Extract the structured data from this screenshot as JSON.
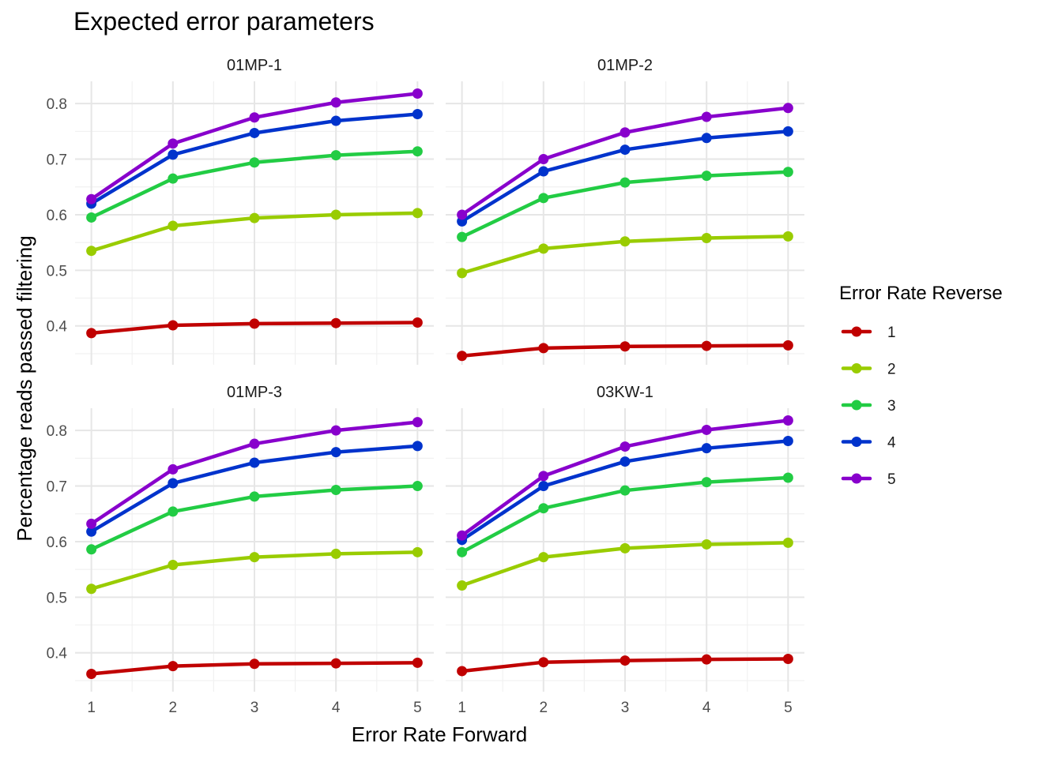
{
  "chart_data": {
    "type": "line",
    "title": "Expected error parameters",
    "xlabel": "Error Rate Forward",
    "ylabel": "Percentage reads passed filtering",
    "x": [
      1,
      2,
      3,
      4,
      5
    ],
    "ylim": [
      0.33,
      0.84
    ],
    "yticks": [
      0.4,
      0.5,
      0.6,
      0.7,
      0.8
    ],
    "ytick_labels": [
      "0.4",
      "0.5",
      "0.6",
      "0.7",
      "0.8"
    ],
    "xtick_labels": [
      "1",
      "2",
      "3",
      "4",
      "5"
    ],
    "grid": true,
    "legend": {
      "title": "Error Rate Reverse",
      "placement": "right",
      "entries": [
        "1",
        "2",
        "3",
        "4",
        "5"
      ]
    },
    "colors": {
      "1": "#c00000",
      "2": "#99cc00",
      "3": "#22cc44",
      "4": "#0033cc",
      "5": "#8800cc"
    },
    "panels": [
      {
        "name": "01MP-1",
        "series": [
          {
            "name": "1",
            "values": [
              0.387,
              0.401,
              0.404,
              0.405,
              0.406
            ]
          },
          {
            "name": "2",
            "values": [
              0.535,
              0.58,
              0.594,
              0.6,
              0.603
            ]
          },
          {
            "name": "3",
            "values": [
              0.595,
              0.665,
              0.694,
              0.707,
              0.714
            ]
          },
          {
            "name": "4",
            "values": [
              0.62,
              0.708,
              0.747,
              0.769,
              0.781
            ]
          },
          {
            "name": "5",
            "values": [
              0.628,
              0.728,
              0.775,
              0.802,
              0.818
            ]
          }
        ]
      },
      {
        "name": "01MP-2",
        "series": [
          {
            "name": "1",
            "values": [
              0.346,
              0.36,
              0.363,
              0.364,
              0.365
            ]
          },
          {
            "name": "2",
            "values": [
              0.495,
              0.539,
              0.552,
              0.558,
              0.561
            ]
          },
          {
            "name": "3",
            "values": [
              0.56,
              0.63,
              0.658,
              0.67,
              0.677
            ]
          },
          {
            "name": "4",
            "values": [
              0.588,
              0.678,
              0.717,
              0.738,
              0.75
            ]
          },
          {
            "name": "5",
            "values": [
              0.6,
              0.7,
              0.748,
              0.776,
              0.792
            ]
          }
        ]
      },
      {
        "name": "01MP-3",
        "series": [
          {
            "name": "1",
            "values": [
              0.362,
              0.376,
              0.38,
              0.381,
              0.382
            ]
          },
          {
            "name": "2",
            "values": [
              0.515,
              0.558,
              0.572,
              0.578,
              0.581
            ]
          },
          {
            "name": "3",
            "values": [
              0.586,
              0.654,
              0.681,
              0.693,
              0.7
            ]
          },
          {
            "name": "4",
            "values": [
              0.618,
              0.705,
              0.742,
              0.761,
              0.772
            ]
          },
          {
            "name": "5",
            "values": [
              0.632,
              0.73,
              0.776,
              0.8,
              0.815
            ]
          }
        ]
      },
      {
        "name": "03KW-1",
        "series": [
          {
            "name": "1",
            "values": [
              0.367,
              0.383,
              0.386,
              0.388,
              0.389
            ]
          },
          {
            "name": "2",
            "values": [
              0.521,
              0.572,
              0.588,
              0.595,
              0.598
            ]
          },
          {
            "name": "3",
            "values": [
              0.581,
              0.66,
              0.692,
              0.707,
              0.715
            ]
          },
          {
            "name": "4",
            "values": [
              0.603,
              0.7,
              0.744,
              0.768,
              0.781
            ]
          },
          {
            "name": "5",
            "values": [
              0.611,
              0.718,
              0.771,
              0.801,
              0.818
            ]
          }
        ]
      }
    ]
  }
}
